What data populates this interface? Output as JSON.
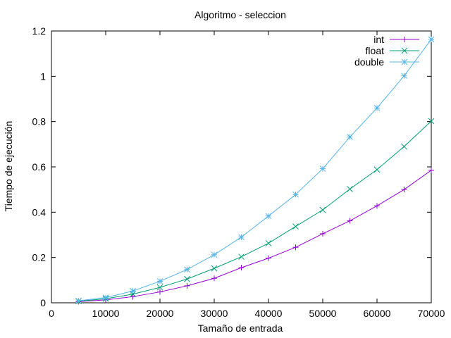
{
  "chart_data": {
    "type": "line",
    "title": "Algoritmo - seleccion",
    "xlabel": "Tamaño de entrada",
    "ylabel": "Tiempo de ejecución",
    "xlim": [
      0,
      70000
    ],
    "ylim": [
      0,
      1.2
    ],
    "xticks": [
      0,
      10000,
      20000,
      30000,
      40000,
      50000,
      60000,
      70000
    ],
    "xtick_labels": [
      "0",
      "10000",
      "20000",
      "30000",
      "40000",
      "50000",
      "60000",
      "70000"
    ],
    "yticks": [
      0,
      0.2,
      0.4,
      0.6,
      0.8,
      1.0,
      1.2
    ],
    "ytick_labels": [
      "0",
      "0.2",
      "0.4",
      "0.6",
      "0.8",
      "1",
      "1.2"
    ],
    "grid": false,
    "legend_position": "top-right",
    "x": [
      5000,
      10000,
      15000,
      20000,
      25000,
      30000,
      35000,
      40000,
      45000,
      50000,
      55000,
      60000,
      65000,
      70000
    ],
    "series": [
      {
        "name": "int",
        "color": "#9400d3",
        "marker": "plus",
        "values": [
          0.005,
          0.013,
          0.027,
          0.048,
          0.075,
          0.108,
          0.155,
          0.197,
          0.245,
          0.305,
          0.362,
          0.428,
          0.5,
          0.585
        ]
      },
      {
        "name": "float",
        "color": "#009e73",
        "marker": "cross",
        "values": [
          0.007,
          0.018,
          0.038,
          0.068,
          0.105,
          0.152,
          0.203,
          0.263,
          0.337,
          0.41,
          0.502,
          0.588,
          0.69,
          0.802
        ]
      },
      {
        "name": "double",
        "color": "#56b4e9",
        "marker": "star",
        "values": [
          0.009,
          0.023,
          0.052,
          0.095,
          0.147,
          0.212,
          0.29,
          0.383,
          0.478,
          0.592,
          0.732,
          0.86,
          1.002,
          1.163
        ]
      }
    ]
  }
}
